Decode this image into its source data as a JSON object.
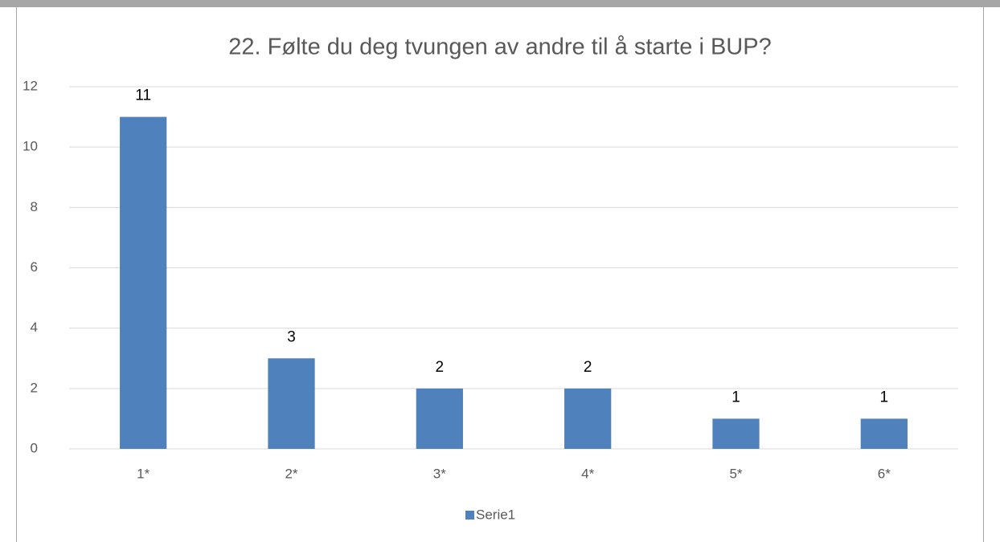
{
  "chart_data": {
    "type": "bar",
    "title": "22. Følte du deg tvungen av andre til å starte i BUP?",
    "categories": [
      "1*",
      "2*",
      "3*",
      "4*",
      "5*",
      "6*"
    ],
    "series": [
      {
        "name": "Serie1",
        "color": "#4f81bd",
        "values": [
          11,
          3,
          2,
          2,
          1,
          1
        ]
      }
    ],
    "ylim": [
      0,
      12
    ],
    "yticks": [
      0,
      2,
      4,
      6,
      8,
      10,
      12
    ],
    "grid": true,
    "legend": "bottom"
  }
}
